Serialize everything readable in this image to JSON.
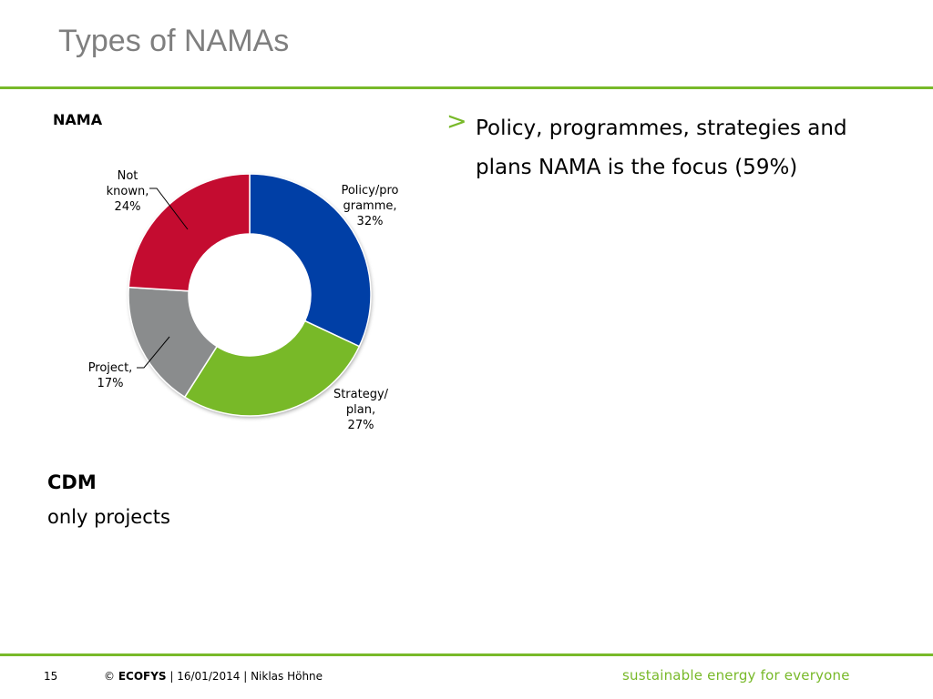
{
  "slide": {
    "title": "Types of NAMAs"
  },
  "chart_data": {
    "type": "pie",
    "title": "NAMA",
    "donut": true,
    "slices": [
      {
        "label": "Policy/programme",
        "value": 32,
        "color": "#003fa6",
        "label_lines": [
          "Policy/pro",
          "gramme,",
          "32%"
        ]
      },
      {
        "label": "Strategy/plan",
        "value": 27,
        "color": "#78b928",
        "label_lines": [
          "Strategy/",
          "plan,",
          "27%"
        ]
      },
      {
        "label": "Project",
        "value": 17,
        "color": "#8a8c8d",
        "label_lines": [
          "Project,",
          "17%"
        ]
      },
      {
        "label": "Not known",
        "value": 24,
        "color": "#c40c30",
        "label_lines": [
          "Not",
          "known,",
          "24%"
        ]
      }
    ]
  },
  "bullet": {
    "marker": ">",
    "text": "Policy, programmes, strategies and plans NAMA is the focus (59%)"
  },
  "cdm": {
    "title": "CDM",
    "text": "only projects"
  },
  "footer": {
    "page_number": "15",
    "copyright_symbol": "©",
    "company": "ECOFYS",
    "details": " | 16/01/2014 | Niklas Höhne",
    "tagline": "sustainable energy for everyone"
  },
  "colors": {
    "accent_green": "#78b929",
    "title_gray": "#7f7f7f"
  }
}
